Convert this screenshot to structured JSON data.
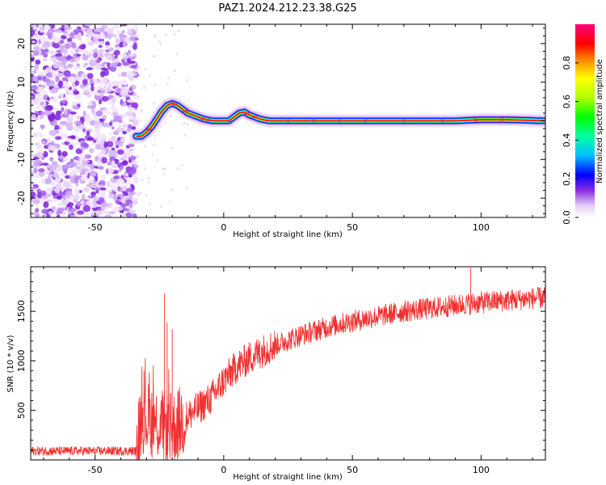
{
  "title": "PAZ1.2024.212.23.38.G25",
  "chart_data": [
    {
      "type": "heatmap",
      "name": "frequency-spectrogram",
      "xlabel": "Height of straight line (km)",
      "ylabel": "Frequency (Hz)",
      "xlim": [
        -75,
        125
      ],
      "ylim": [
        -25,
        25
      ],
      "xticks": [
        -50,
        0,
        50,
        100
      ],
      "yticks": [
        -20,
        -10,
        0,
        10,
        20
      ],
      "colorbar": {
        "label": "Normalized spectral amplitude",
        "range": [
          0.0,
          1.0
        ],
        "ticks": [
          0.0,
          0.2,
          0.4,
          0.6,
          0.8
        ],
        "colormap": [
          "#e6cff8",
          "#c9a2f6",
          "#8a2be2",
          "#0000ff",
          "#00bfff",
          "#00ffa0",
          "#00ff00",
          "#b0ff00",
          "#ffff00",
          "#ff8000",
          "#ff0000",
          "#ff0080"
        ]
      },
      "noise_region": {
        "x_range": [
          -75,
          -34
        ],
        "y_range": [
          -25,
          25
        ]
      },
      "ridge": {
        "x": [
          -34,
          -32,
          -30,
          -28,
          -26,
          -24,
          -22,
          -20,
          -18,
          -16,
          -14,
          -12,
          -10,
          -8,
          -6,
          -4,
          -2,
          0,
          2,
          4,
          6,
          8,
          10,
          12,
          14,
          16,
          18,
          20,
          30,
          40,
          50,
          60,
          70,
          80,
          90,
          100,
          110,
          125
        ],
        "y": [
          -4,
          -4,
          -3,
          -1.5,
          0.5,
          2.5,
          4,
          4.5,
          4,
          3,
          2,
          1.5,
          1,
          0.5,
          0.2,
          0,
          0,
          0,
          0,
          1,
          2,
          2.3,
          1.5,
          1,
          0.5,
          0.2,
          0,
          0,
          0,
          0,
          0,
          0,
          0,
          0,
          0,
          0.3,
          0.3,
          0
        ]
      }
    },
    {
      "type": "line",
      "name": "snr",
      "xlabel": "Height of straight line (km)",
      "ylabel": "SNR (10 * v/v)",
      "xlim": [
        -75,
        125
      ],
      "ylim": [
        0,
        1950
      ],
      "xticks": [
        -50,
        0,
        50,
        100
      ],
      "yticks": [
        500,
        1000,
        1500
      ],
      "color": "#f03030",
      "trend": {
        "x": [
          -75,
          -34,
          -32,
          -25,
          -20,
          -15,
          -10,
          -5,
          0,
          5,
          10,
          15,
          20,
          30,
          40,
          50,
          60,
          70,
          80,
          90,
          100,
          110,
          125
        ],
        "y": [
          90,
          90,
          450,
          350,
          300,
          420,
          520,
          620,
          800,
          940,
          1030,
          1100,
          1160,
          1260,
          1340,
          1400,
          1450,
          1500,
          1530,
          1560,
          1590,
          1610,
          1640
        ]
      },
      "spikes": [
        {
          "x": -23,
          "y": 1680
        },
        {
          "x": -22,
          "y": 1390
        },
        {
          "x": -20,
          "y": 1320
        },
        {
          "x": -31,
          "y": 900
        },
        {
          "x": -21,
          "y": 90
        },
        {
          "x": 96,
          "y": 1940
        },
        {
          "x": 8,
          "y": 1150
        },
        {
          "x": 14,
          "y": 1200
        }
      ]
    }
  ]
}
